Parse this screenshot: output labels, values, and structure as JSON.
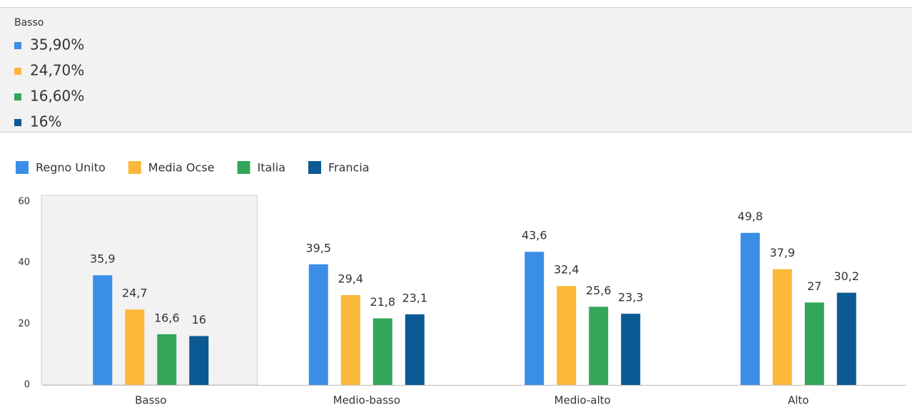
{
  "tooltip": {
    "title": "Basso",
    "labels": [
      "35,90%",
      "24,70%",
      "16,60%",
      "16%"
    ]
  },
  "chart_data": {
    "type": "bar",
    "categories": [
      "Basso",
      "Medio-basso",
      "Medio-alto",
      "Alto"
    ],
    "series": [
      {
        "name": "Regno Unito",
        "color": "#3a8ee6",
        "values": [
          35.9,
          39.5,
          43.6,
          49.8
        ],
        "value_labels": [
          "35,9",
          "39,5",
          "43,6",
          "49,8"
        ]
      },
      {
        "name": "Media Ocse",
        "color": "#fbb83a",
        "values": [
          24.7,
          29.4,
          32.4,
          37.9
        ],
        "value_labels": [
          "24,7",
          "29,4",
          "32,4",
          "37,9"
        ]
      },
      {
        "name": "Italia",
        "color": "#34a65a",
        "values": [
          16.6,
          21.8,
          25.6,
          27
        ],
        "value_labels": [
          "16,6",
          "21,8",
          "25,6",
          "27"
        ]
      },
      {
        "name": "Francia",
        "color": "#0b5a93",
        "values": [
          16,
          23.1,
          23.3,
          30.2
        ],
        "value_labels": [
          "16",
          "23,1",
          "23,3",
          "30,2"
        ]
      }
    ],
    "ylim": [
      0,
      60
    ],
    "yticks": [
      0,
      20,
      40,
      60
    ],
    "grid": false,
    "legend": "top-left"
  }
}
